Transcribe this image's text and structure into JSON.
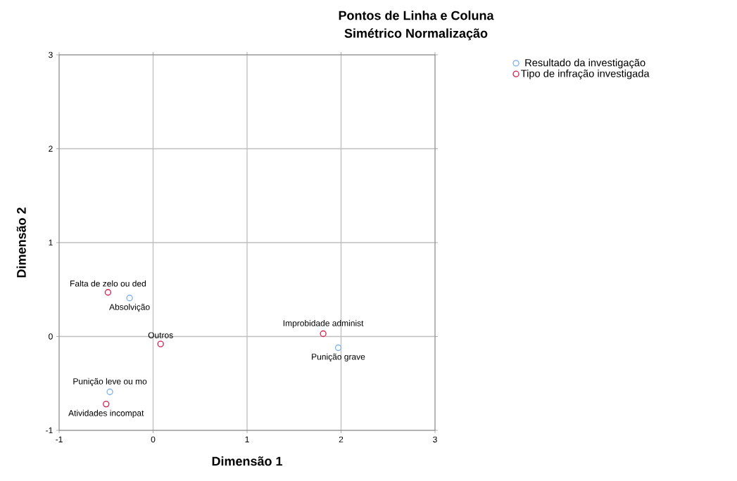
{
  "chart_data": {
    "type": "scatter",
    "title": "Pontos de Linha e Coluna",
    "subtitle": "Simétrico Normalização",
    "xlabel": "Dimensão 1",
    "ylabel": "Dimensão 2",
    "series": [
      {
        "name": "Resultado da investigação",
        "color": "#7fb2f0",
        "x": [
          -0.25,
          1.97,
          -0.46
        ],
        "values": [
          0.41,
          -0.12,
          -0.59
        ]
      },
      {
        "name": "Tipo de infração investigada",
        "color": "#d6204f",
        "x": [
          -0.48,
          0.08,
          1.81,
          -0.5
        ],
        "values": [
          0.47,
          -0.08,
          0.03,
          -0.72
        ]
      }
    ],
    "annotations": [
      {
        "text": "Absolvição",
        "x": -0.25,
        "y": 0.41
      },
      {
        "text": "Punição grave",
        "x": 1.97,
        "y": -0.12
      },
      {
        "text": "Punição leve ou mo",
        "x": -0.46,
        "y": -0.59
      },
      {
        "text": "Falta de zelo ou ded",
        "x": -0.48,
        "y": 0.47
      },
      {
        "text": "Outros",
        "x": 0.08,
        "y": -0.08
      },
      {
        "text": "Improbidade administ",
        "x": 1.81,
        "y": 0.03
      },
      {
        "text": "Atividades incompat",
        "x": -0.5,
        "y": -0.72
      }
    ],
    "xlim": [
      -1,
      3
    ],
    "ylim": [
      -1,
      3
    ],
    "xticks": [
      -1,
      0,
      1,
      2,
      3
    ],
    "yticks": [
      -1,
      0,
      1,
      2,
      3
    ],
    "grid": true,
    "legend": "top right",
    "marker": "circle"
  }
}
